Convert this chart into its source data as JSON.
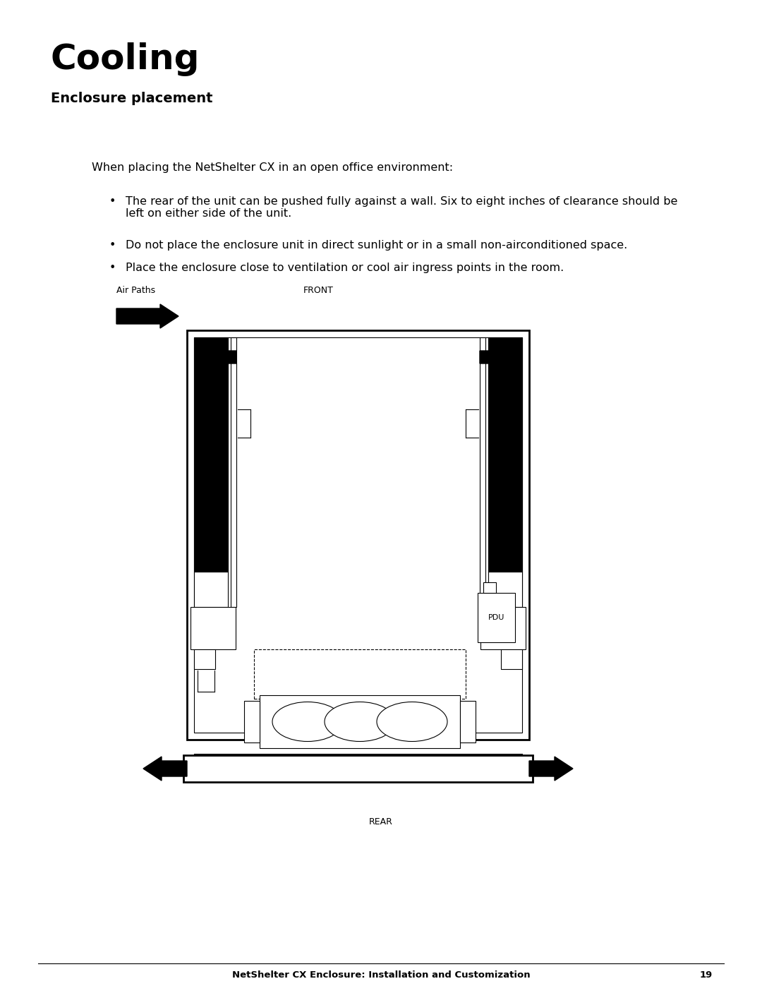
{
  "title": "Cooling",
  "subtitle": "Enclosure placement",
  "body_text": "When placing the NetShelter CX in an open office environment:",
  "bullet1": "The rear of the unit can be pushed fully against a wall. Six to eight inches of clearance should be\nleft on either side of the unit.",
  "bullet2": "Do not place the enclosure unit in direct sunlight or in a small non-airconditioned space.",
  "bullet3": "Place the enclosure close to ventilation or cool air ingress points in the room.",
  "label_air_paths": "Air Paths",
  "label_front": "FRONT",
  "label_rear": "REAR",
  "label_pdu": "PDU",
  "footer_text": "NetShelter CX Enclosure: Installation and Customization",
  "footer_page": "19",
  "bg_color": "#ffffff",
  "text_color": "#000000"
}
